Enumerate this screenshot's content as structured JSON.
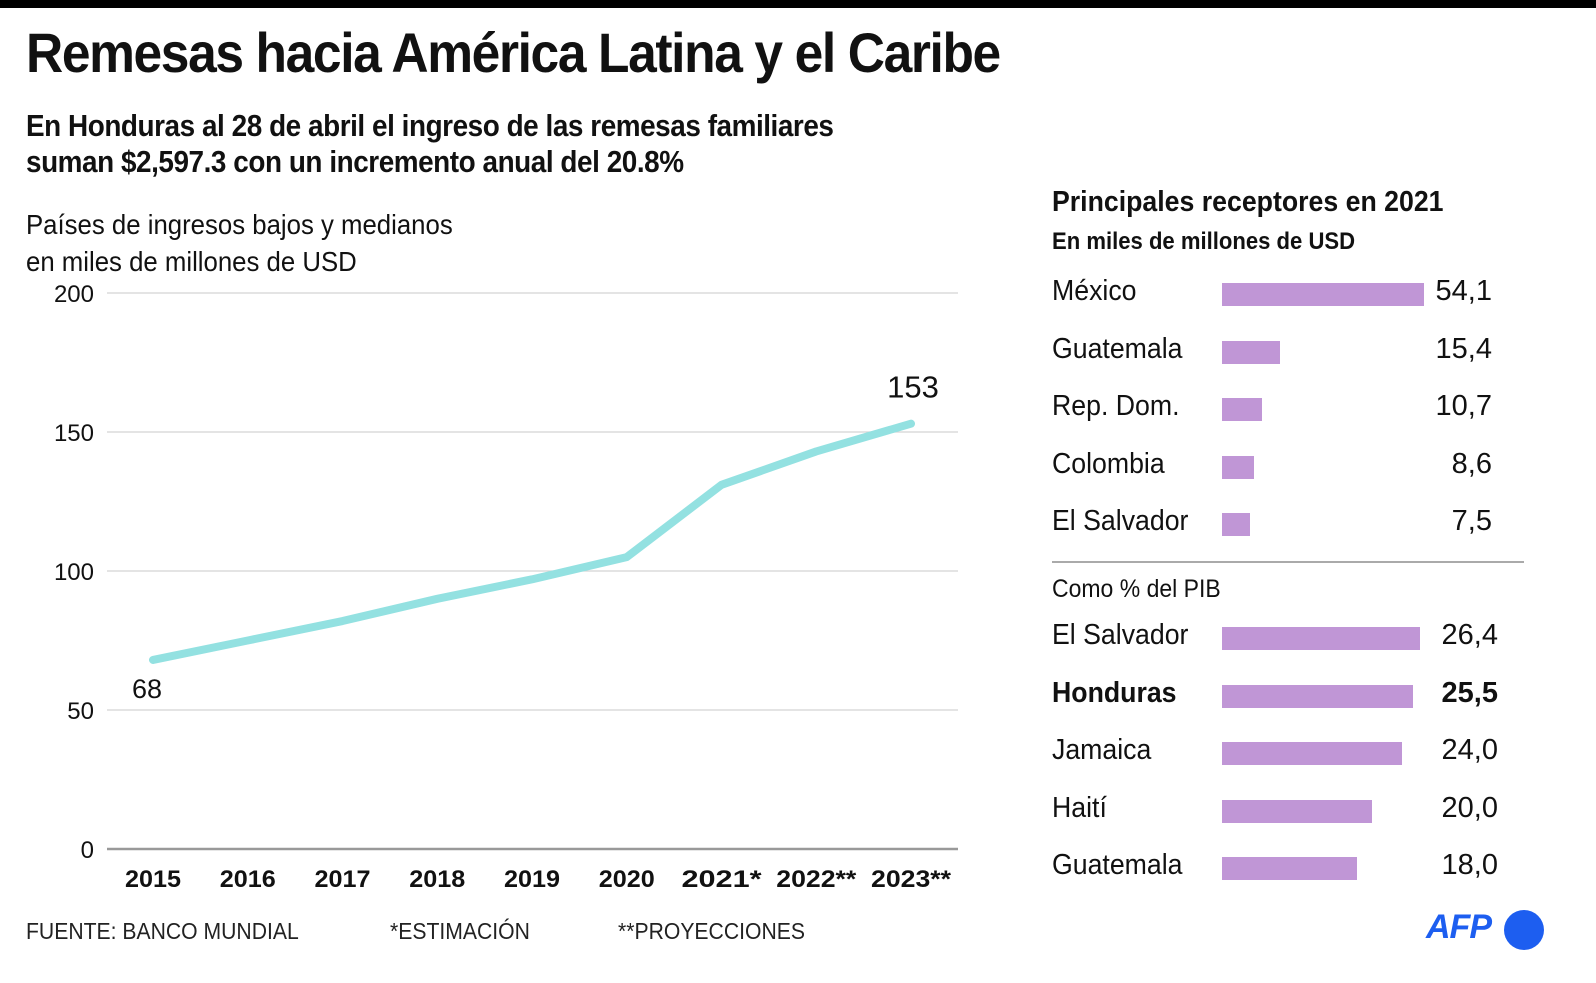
{
  "header": {
    "title": "Remesas hacia América Latina y el Caribe",
    "subtitle_line1": "En Honduras al 28 de abril el ingreso de las remesas familiares",
    "subtitle_line2": "suman $2,597.3 con un incremento anual  del 20.8%"
  },
  "chart_data": [
    {
      "type": "line",
      "title": "Países de ingresos bajos y medianos",
      "subtitle": "en miles de millones de USD",
      "categories": [
        "2015",
        "2016",
        "2017",
        "2018",
        "2019",
        "2020",
        "2021*",
        "2022**",
        "2023**"
      ],
      "series": [
        {
          "name": "Remesas",
          "values": [
            68,
            75,
            82,
            90,
            97,
            105,
            131,
            143,
            153
          ],
          "color": "#93e1e1"
        }
      ],
      "data_labels": [
        {
          "category": "2015",
          "text": "68"
        },
        {
          "category": "2023**",
          "text": "153"
        }
      ],
      "yticks": [
        0,
        50,
        100,
        150,
        200
      ],
      "ylim": [
        0,
        200
      ],
      "grid": true,
      "xlabel": "",
      "ylabel": ""
    },
    {
      "type": "bar",
      "orientation": "horizontal",
      "title": "Principales receptores en 2021",
      "subtitle": "En miles de millones de USD",
      "categories": [
        "México",
        "Guatemala",
        "Rep. Dom.",
        "Colombia",
        "El Salvador"
      ],
      "values": [
        54.1,
        15.4,
        10.7,
        8.6,
        7.5
      ],
      "value_labels": [
        "54,1",
        "15,4",
        "10,7",
        "8,6",
        "7,5"
      ],
      "color": "#c096d6"
    },
    {
      "type": "bar",
      "orientation": "horizontal",
      "title": "Como % del PIB",
      "categories": [
        "El Salvador",
        "Honduras",
        "Jamaica",
        "Haití",
        "Guatemala"
      ],
      "values": [
        26.4,
        25.5,
        24.0,
        20.0,
        18.0
      ],
      "value_labels": [
        "26,4",
        "25,5",
        "24,0",
        "20,0",
        "18,0"
      ],
      "highlight": "Honduras",
      "color": "#c096d6"
    }
  ],
  "footer": {
    "source": "FUENTE: BANCO MUNDIAL",
    "note1": "*ESTIMACIÓN",
    "note2": "**PROYECCIONES"
  },
  "brand": {
    "logo_text": "AFP",
    "color": "#1d5ef0"
  }
}
